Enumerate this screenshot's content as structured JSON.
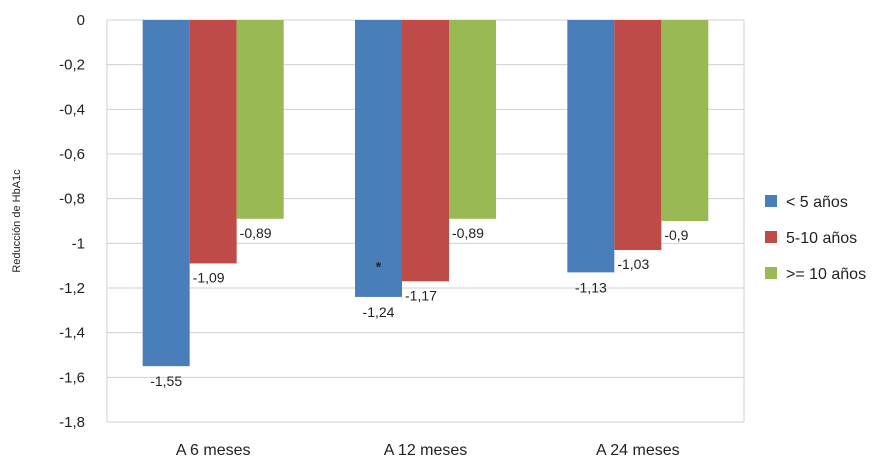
{
  "chart_data": {
    "type": "bar",
    "title": "",
    "xlabel": "",
    "ylabel": "Reducción de HbA1c",
    "ylim": [
      -1.8,
      0
    ],
    "yticks": [
      "0",
      "-0,2",
      "-0,4",
      "-0,6",
      "-0,8",
      "-1",
      "-1,2",
      "-1,4",
      "-1,6",
      "-1,8"
    ],
    "categories": [
      "A 6 meses",
      "A 12 meses",
      "A 24 meses"
    ],
    "grid": true,
    "legend": "right",
    "series": [
      {
        "name": "< 5 años",
        "color": "#4A7EBB",
        "values": [
          -1.55,
          -1.24,
          -1.13
        ],
        "labels": [
          "-1,55",
          "-1,24",
          "-1,13"
        ]
      },
      {
        "name": "5-10 años",
        "color": "#BE4B48",
        "values": [
          -1.09,
          -1.17,
          -1.03
        ],
        "labels": [
          "-1,09",
          "-1,17",
          "-1,03"
        ]
      },
      {
        "name": ">= 10 años",
        "color": "#98B954",
        "values": [
          -0.89,
          -0.89,
          -0.9
        ],
        "labels": [
          "-0,89",
          "-0,89",
          "-0,9"
        ]
      }
    ],
    "annotations": [
      {
        "text": "*",
        "category": 1,
        "series": 0,
        "y": -1.1
      }
    ]
  }
}
